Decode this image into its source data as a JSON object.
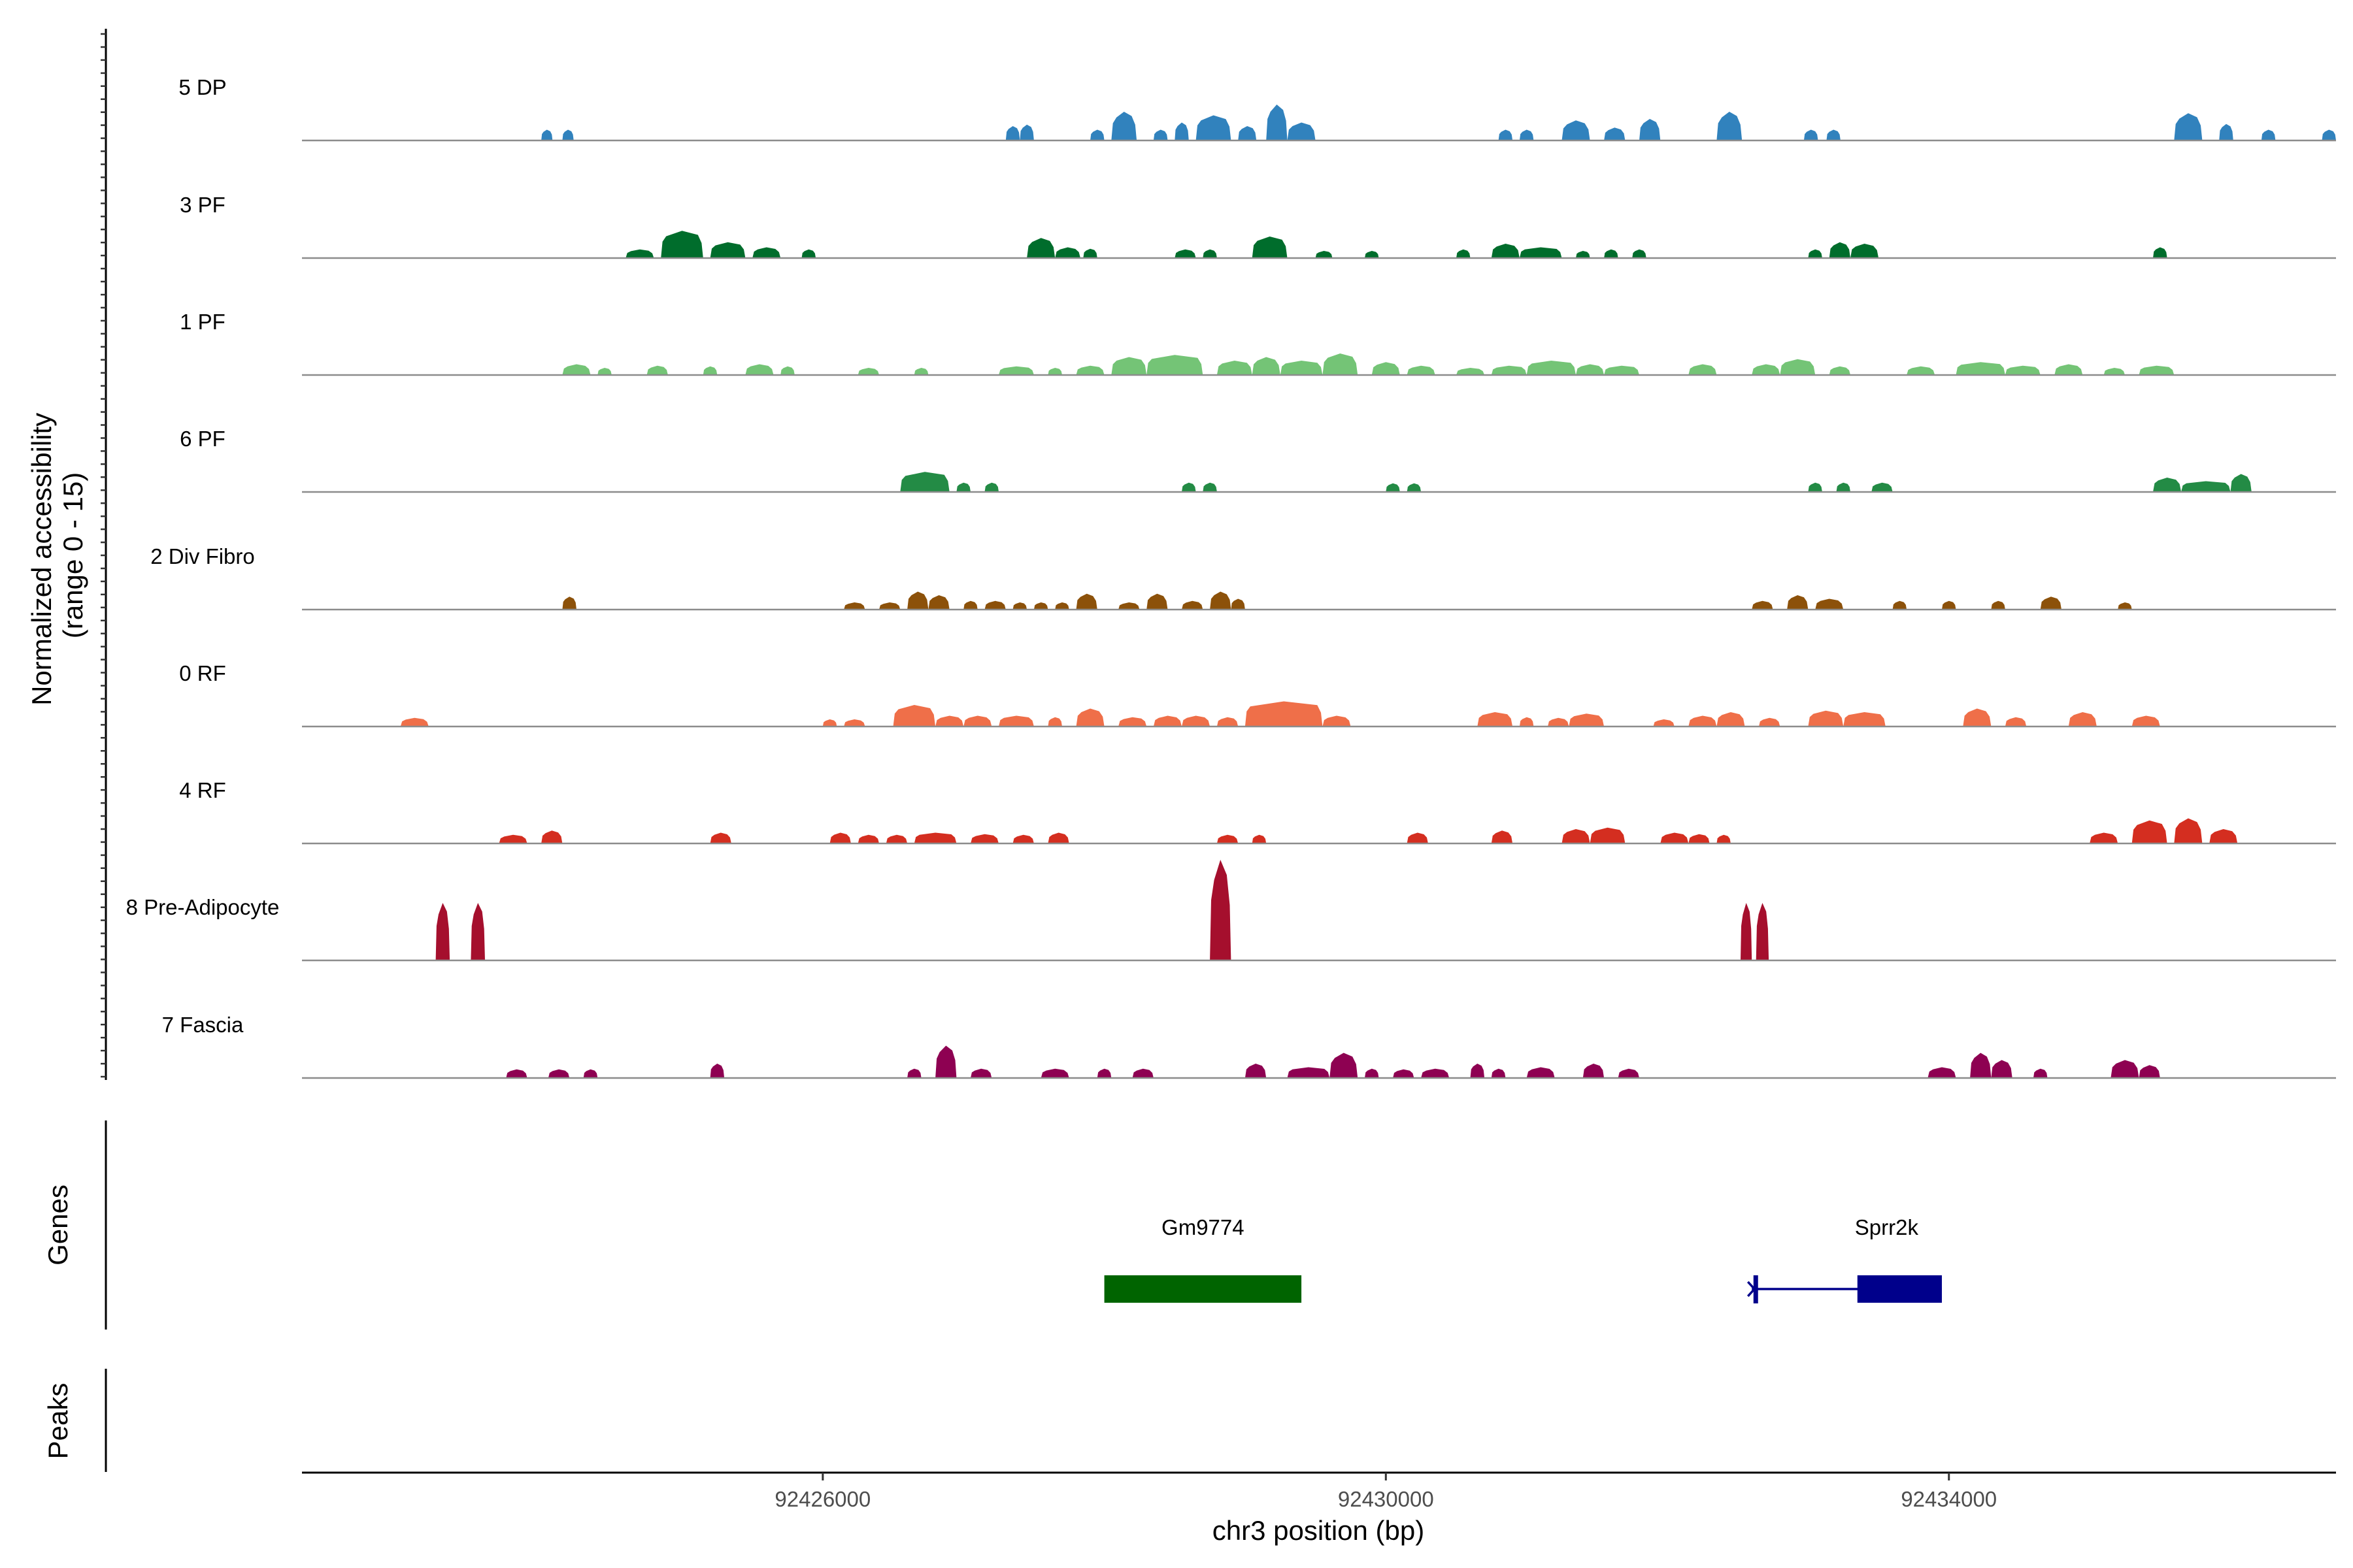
{
  "chart_data": {
    "type": "area",
    "title": "",
    "region": "chr3",
    "xlabel": "chr3 position (bp)",
    "xlim": [
      92422300,
      92436750
    ],
    "x_ticks": [
      92426000,
      92430000,
      92434000
    ],
    "x_tick_labels": [
      "92426000",
      "92430000",
      "92434000"
    ],
    "ylabel_line1": "Normalized accessibility",
    "ylabel_line2": "(range 0 - 15)",
    "ylim": [
      0,
      15
    ],
    "tracks": [
      {
        "name": "5 DP",
        "color": "#3182bd",
        "peaks": [
          [
            92424000,
            92424080,
            1.5
          ],
          [
            92424150,
            92424230,
            1.5
          ],
          [
            92427300,
            92427400,
            2
          ],
          [
            92427400,
            92427500,
            2.2
          ],
          [
            92427900,
            92428000,
            1.5
          ],
          [
            92428050,
            92428230,
            4
          ],
          [
            92428350,
            92428450,
            1.5
          ],
          [
            92428500,
            92428600,
            2.5
          ],
          [
            92428650,
            92428900,
            3.5
          ],
          [
            92428950,
            92429080,
            2
          ],
          [
            92429150,
            92429300,
            5
          ],
          [
            92429300,
            92429500,
            2.5
          ],
          [
            92430800,
            92430900,
            1.5
          ],
          [
            92430950,
            92431050,
            1.5
          ],
          [
            92431250,
            92431450,
            2.8
          ],
          [
            92431550,
            92431700,
            1.8
          ],
          [
            92431800,
            92431950,
            3
          ],
          [
            92432350,
            92432530,
            4
          ],
          [
            92432970,
            92433070,
            1.5
          ],
          [
            92433130,
            92433230,
            1.5
          ],
          [
            92435600,
            92435800,
            3.8
          ],
          [
            92435920,
            92436020,
            2.3
          ],
          [
            92436220,
            92436320,
            1.5
          ],
          [
            92436650,
            92436750,
            1.5
          ]
        ]
      },
      {
        "name": "3 PF",
        "color": "#006d2c",
        "peaks": [
          [
            92424600,
            92424800,
            1.2
          ],
          [
            92424850,
            92425150,
            3.8
          ],
          [
            92425200,
            92425450,
            2.2
          ],
          [
            92425500,
            92425700,
            1.5
          ],
          [
            92425850,
            92425950,
            1.2
          ],
          [
            92427450,
            92427650,
            2.8
          ],
          [
            92427650,
            92427830,
            1.5
          ],
          [
            92427850,
            92427950,
            1.3
          ],
          [
            92428500,
            92428650,
            1.2
          ],
          [
            92428700,
            92428800,
            1.2
          ],
          [
            92429050,
            92429300,
            3
          ],
          [
            92429500,
            92429620,
            1
          ],
          [
            92429850,
            92429950,
            1
          ],
          [
            92430500,
            92430600,
            1.2
          ],
          [
            92430750,
            92430950,
            2
          ],
          [
            92430950,
            92431250,
            1.5
          ],
          [
            92431350,
            92431450,
            1
          ],
          [
            92431550,
            92431650,
            1.2
          ],
          [
            92431750,
            92431850,
            1.2
          ],
          [
            92433000,
            92433100,
            1.2
          ],
          [
            92433150,
            92433300,
            2.2
          ],
          [
            92433300,
            92433500,
            2
          ],
          [
            92435450,
            92435550,
            1.5
          ]
        ]
      },
      {
        "name": "1 PF",
        "color": "#74c476",
        "peaks": [
          [
            92424150,
            92424350,
            1.5
          ],
          [
            92424400,
            92424500,
            1
          ],
          [
            92424750,
            92424900,
            1.3
          ],
          [
            92425150,
            92425250,
            1.2
          ],
          [
            92425450,
            92425650,
            1.5
          ],
          [
            92425700,
            92425800,
            1.2
          ],
          [
            92426250,
            92426400,
            1
          ],
          [
            92426650,
            92426750,
            1
          ],
          [
            92427250,
            92427500,
            1.2
          ],
          [
            92427600,
            92427700,
            1
          ],
          [
            92427800,
            92428000,
            1.3
          ],
          [
            92428050,
            92428300,
            2.5
          ],
          [
            92428300,
            92428700,
            2.8
          ],
          [
            92428800,
            92429050,
            2
          ],
          [
            92429050,
            92429250,
            2.5
          ],
          [
            92429250,
            92429550,
            2
          ],
          [
            92429550,
            92429800,
            3
          ],
          [
            92429900,
            92430100,
            1.8
          ],
          [
            92430150,
            92430350,
            1.3
          ],
          [
            92430500,
            92430700,
            1
          ],
          [
            92430750,
            92431000,
            1.3
          ],
          [
            92431000,
            92431350,
            2
          ],
          [
            92431350,
            92431550,
            1.5
          ],
          [
            92431550,
            92431800,
            1.3
          ],
          [
            92432150,
            92432350,
            1.5
          ],
          [
            92432600,
            92432800,
            1.5
          ],
          [
            92432800,
            92433050,
            2.2
          ],
          [
            92433150,
            92433300,
            1.2
          ],
          [
            92433700,
            92433900,
            1.2
          ],
          [
            92434050,
            92434400,
            1.8
          ],
          [
            92434400,
            92434650,
            1.3
          ],
          [
            92434750,
            92434950,
            1.5
          ],
          [
            92435100,
            92435250,
            1
          ],
          [
            92435350,
            92435600,
            1.3
          ]
        ]
      },
      {
        "name": "6 PF",
        "color": "#238b45",
        "peaks": [
          [
            92426550,
            92426900,
            2.8
          ],
          [
            92426950,
            92427050,
            1.3
          ],
          [
            92427150,
            92427250,
            1.3
          ],
          [
            92428550,
            92428650,
            1.3
          ],
          [
            92428700,
            92428800,
            1.3
          ],
          [
            92430000,
            92430100,
            1.2
          ],
          [
            92430150,
            92430250,
            1.2
          ],
          [
            92433000,
            92433100,
            1.3
          ],
          [
            92433200,
            92433300,
            1.3
          ],
          [
            92433450,
            92433600,
            1.3
          ],
          [
            92435450,
            92435650,
            2
          ],
          [
            92435650,
            92436000,
            1.5
          ],
          [
            92436000,
            92436150,
            2.5
          ]
        ]
      },
      {
        "name": "2 Div Fibro",
        "color": "#8c510a",
        "peaks": [
          [
            92424150,
            92424250,
            1.8
          ],
          [
            92426150,
            92426300,
            1
          ],
          [
            92426400,
            92426550,
            1
          ],
          [
            92426600,
            92426750,
            2.5
          ],
          [
            92426750,
            92426900,
            2
          ],
          [
            92427000,
            92427100,
            1.2
          ],
          [
            92427150,
            92427300,
            1.2
          ],
          [
            92427350,
            92427450,
            1
          ],
          [
            92427500,
            92427600,
            1
          ],
          [
            92427650,
            92427750,
            1
          ],
          [
            92427800,
            92427950,
            2.2
          ],
          [
            92428100,
            92428250,
            1
          ],
          [
            92428300,
            92428450,
            2.2
          ],
          [
            92428550,
            92428700,
            1.2
          ],
          [
            92428750,
            92428900,
            2.5
          ],
          [
            92428900,
            92429000,
            1.5
          ],
          [
            92432600,
            92432750,
            1.2
          ],
          [
            92432850,
            92433000,
            2
          ],
          [
            92433050,
            92433250,
            1.5
          ],
          [
            92433600,
            92433700,
            1.2
          ],
          [
            92433950,
            92434050,
            1.2
          ],
          [
            92434300,
            92434400,
            1.2
          ],
          [
            92434650,
            92434800,
            1.8
          ],
          [
            92435200,
            92435300,
            1
          ]
        ]
      },
      {
        "name": "0 RF",
        "color": "#ef6f49",
        "peaks": [
          [
            92423000,
            92423200,
            1.2
          ],
          [
            92426000,
            92426100,
            1
          ],
          [
            92426150,
            92426300,
            1
          ],
          [
            92426500,
            92426800,
            3
          ],
          [
            92426800,
            92427000,
            1.5
          ],
          [
            92427000,
            92427200,
            1.5
          ],
          [
            92427250,
            92427500,
            1.5
          ],
          [
            92427600,
            92427700,
            1.3
          ],
          [
            92427800,
            92428000,
            2.5
          ],
          [
            92428100,
            92428300,
            1.3
          ],
          [
            92428350,
            92428550,
            1.5
          ],
          [
            92428550,
            92428750,
            1.5
          ],
          [
            92428800,
            92428950,
            1.3
          ],
          [
            92429000,
            92429550,
            3.5
          ],
          [
            92429550,
            92429750,
            1.5
          ],
          [
            92430650,
            92430900,
            2
          ],
          [
            92430950,
            92431050,
            1.3
          ],
          [
            92431150,
            92431300,
            1.2
          ],
          [
            92431300,
            92431550,
            1.8
          ],
          [
            92431900,
            92432050,
            1
          ],
          [
            92432150,
            92432350,
            1.5
          ],
          [
            92432350,
            92432550,
            2
          ],
          [
            92432650,
            92432800,
            1.2
          ],
          [
            92433000,
            92433250,
            2.2
          ],
          [
            92433250,
            92433550,
            2
          ],
          [
            92434100,
            92434300,
            2.5
          ],
          [
            92434400,
            92434550,
            1.3
          ],
          [
            92434850,
            92435050,
            2
          ],
          [
            92435300,
            92435500,
            1.5
          ]
        ]
      },
      {
        "name": "4 RF",
        "color": "#d42e20",
        "peaks": [
          [
            92423700,
            92423900,
            1.2
          ],
          [
            92424000,
            92424150,
            1.8
          ],
          [
            92425200,
            92425350,
            1.5
          ],
          [
            92426050,
            92426200,
            1.5
          ],
          [
            92426250,
            92426400,
            1.2
          ],
          [
            92426450,
            92426600,
            1.2
          ],
          [
            92426650,
            92426950,
            1.5
          ],
          [
            92427050,
            92427250,
            1.3
          ],
          [
            92427350,
            92427500,
            1.2
          ],
          [
            92427600,
            92427750,
            1.5
          ],
          [
            92428800,
            92428950,
            1.2
          ],
          [
            92429050,
            92429150,
            1.2
          ],
          [
            92430150,
            92430300,
            1.5
          ],
          [
            92430750,
            92430900,
            1.8
          ],
          [
            92431250,
            92431450,
            2
          ],
          [
            92431450,
            92431700,
            2.2
          ],
          [
            92431950,
            92432150,
            1.5
          ],
          [
            92432150,
            92432300,
            1.3
          ],
          [
            92432350,
            92432450,
            1.2
          ],
          [
            92435000,
            92435200,
            1.5
          ],
          [
            92435300,
            92435550,
            3.2
          ],
          [
            92435600,
            92435800,
            3.5
          ],
          [
            92435850,
            92436050,
            2
          ]
        ]
      },
      {
        "name": "8 Pre-Adipocyte",
        "color": "#a50f2d",
        "peaks": [
          [
            92423250,
            92423350,
            8
          ],
          [
            92423500,
            92423600,
            8
          ],
          [
            92428750,
            92428900,
            14
          ],
          [
            92432520,
            92432600,
            8
          ],
          [
            92432630,
            92432720,
            8
          ]
        ]
      },
      {
        "name": "7 Fascia",
        "color": "#8e0152",
        "peaks": [
          [
            92423750,
            92423900,
            1.2
          ],
          [
            92424050,
            92424200,
            1.2
          ],
          [
            92424300,
            92424400,
            1.2
          ],
          [
            92425200,
            92425300,
            2
          ],
          [
            92426600,
            92426700,
            1.3
          ],
          [
            92426800,
            92426950,
            4.5
          ],
          [
            92427050,
            92427200,
            1.3
          ],
          [
            92427550,
            92427750,
            1.3
          ],
          [
            92427950,
            92428050,
            1.3
          ],
          [
            92428200,
            92428350,
            1.3
          ],
          [
            92429000,
            92429150,
            2
          ],
          [
            92429300,
            92429600,
            1.5
          ],
          [
            92429600,
            92429800,
            3.5
          ],
          [
            92429850,
            92429950,
            1.3
          ],
          [
            92430050,
            92430200,
            1.2
          ],
          [
            92430250,
            92430450,
            1.3
          ],
          [
            92430600,
            92430700,
            2
          ],
          [
            92430750,
            92430850,
            1.3
          ],
          [
            92431000,
            92431200,
            1.5
          ],
          [
            92431400,
            92431550,
            2
          ],
          [
            92431650,
            92431800,
            1.3
          ],
          [
            92433850,
            92434050,
            1.5
          ],
          [
            92434150,
            92434300,
            3.5
          ],
          [
            92434300,
            92434450,
            2.5
          ],
          [
            92434600,
            92434700,
            1.3
          ],
          [
            92435150,
            92435350,
            2.5
          ],
          [
            92435350,
            92435500,
            1.8
          ]
        ]
      }
    ],
    "genes_label": "Genes",
    "genes": [
      {
        "name": "Gm9774",
        "start": 92428000,
        "end": 92429400,
        "color": "#006400",
        "exons": [
          [
            92428000,
            92429400
          ]
        ],
        "has_line": false
      },
      {
        "name": "Sprr2k",
        "start": 92432600,
        "end": 92433950,
        "color": "#00008b",
        "exons": [
          [
            92433350,
            92433950
          ]
        ],
        "has_line": true
      }
    ],
    "peaks_label": "Peaks"
  }
}
